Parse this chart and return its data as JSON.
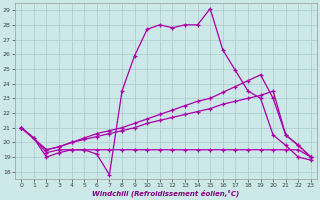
{
  "xlabel": "Windchill (Refroidissement éolien,°C)",
  "bg_color": "#cce8e8",
  "line_color": "#aa00aa",
  "xlim": [
    -0.5,
    23.5
  ],
  "ylim": [
    17.5,
    29.5
  ],
  "yticks": [
    18,
    19,
    20,
    21,
    22,
    23,
    24,
    25,
    26,
    27,
    28,
    29
  ],
  "xticks": [
    0,
    1,
    2,
    3,
    4,
    5,
    6,
    7,
    8,
    9,
    10,
    11,
    12,
    13,
    14,
    15,
    16,
    17,
    18,
    19,
    20,
    21,
    22,
    23
  ],
  "s1_x": [
    0,
    1,
    2,
    3,
    4,
    5,
    6,
    7,
    8,
    9,
    10,
    11,
    12,
    13,
    14,
    15,
    16,
    17,
    18,
    19,
    20,
    21,
    22,
    23
  ],
  "s1_y": [
    21.0,
    20.3,
    19.0,
    19.3,
    19.5,
    19.5,
    19.2,
    17.8,
    23.5,
    25.9,
    27.7,
    28.0,
    27.8,
    28.0,
    28.0,
    29.1,
    26.3,
    24.9,
    23.5,
    23.0,
    20.5,
    19.8,
    19.0,
    18.8
  ],
  "s2_x": [
    0,
    1,
    2,
    3,
    4,
    5,
    6,
    7,
    8,
    9,
    10,
    11,
    12,
    13,
    14,
    15,
    16,
    17,
    18,
    19,
    20,
    21,
    22,
    23
  ],
  "s2_y": [
    21.0,
    20.3,
    19.3,
    19.5,
    19.5,
    19.5,
    19.5,
    19.5,
    19.5,
    19.5,
    19.5,
    19.5,
    19.5,
    19.5,
    19.5,
    19.5,
    19.5,
    19.5,
    19.5,
    19.5,
    19.5,
    19.5,
    19.5,
    19.0
  ],
  "s3_x": [
    0,
    2,
    3,
    4,
    5,
    6,
    7,
    8,
    9,
    10,
    11,
    12,
    13,
    14,
    15,
    16,
    17,
    18,
    19,
    20,
    21,
    22,
    23
  ],
  "s3_y": [
    21.0,
    19.5,
    19.7,
    20.0,
    20.2,
    20.4,
    20.6,
    20.8,
    21.0,
    21.3,
    21.5,
    21.7,
    21.9,
    22.1,
    22.3,
    22.6,
    22.8,
    23.0,
    23.2,
    23.5,
    20.5,
    19.8,
    19.0
  ],
  "s4_x": [
    0,
    2,
    3,
    4,
    5,
    6,
    7,
    8,
    9,
    10,
    11,
    12,
    13,
    14,
    15,
    16,
    17,
    18,
    19,
    20,
    21,
    22,
    23
  ],
  "s4_y": [
    21.0,
    19.5,
    19.7,
    20.0,
    20.3,
    20.6,
    20.8,
    21.0,
    21.3,
    21.6,
    21.9,
    22.2,
    22.5,
    22.8,
    23.0,
    23.4,
    23.8,
    24.2,
    24.6,
    23.0,
    20.5,
    19.8,
    19.0
  ]
}
